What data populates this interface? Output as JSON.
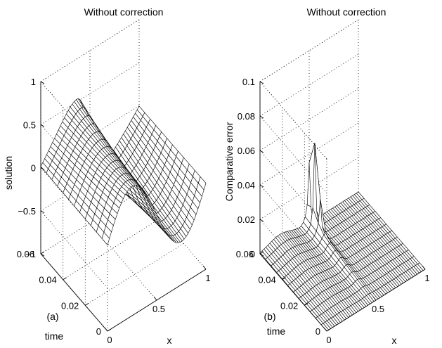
{
  "chart_data": [
    {
      "type": "surface",
      "panel_label": "(a)",
      "title": "Without correction",
      "xlabel": "x",
      "ylabel": "time",
      "zlabel": "solution",
      "xlim": [
        0,
        1
      ],
      "ylim": [
        0,
        0.06
      ],
      "zlim": [
        -1,
        1
      ],
      "xticks": [
        {
          "v": 0,
          "label": "0"
        },
        {
          "v": 0.5,
          "label": "0.5"
        },
        {
          "v": 1,
          "label": "1"
        }
      ],
      "yticks": [
        {
          "v": 0,
          "label": "0"
        },
        {
          "v": 0.02,
          "label": "0.02"
        },
        {
          "v": 0.04,
          "label": "0.04"
        },
        {
          "v": 0.06,
          "label": "0.06"
        }
      ],
      "zticks": [
        {
          "v": -1,
          "label": "−1"
        },
        {
          "v": -0.5,
          "label": "−0.5"
        },
        {
          "v": 0,
          "label": "0"
        },
        {
          "v": 0.5,
          "label": "0.5"
        },
        {
          "v": 1,
          "label": "1"
        }
      ],
      "description_of_surface": "sin(2*pi*x) steepening front near x=0.5, amplitude ~0.5, advected over time"
    },
    {
      "type": "surface",
      "panel_label": "(b)",
      "title": "Without correction",
      "xlabel": "x",
      "ylabel": "time",
      "zlabel": "Comparative error",
      "xlim": [
        0,
        1
      ],
      "ylim": [
        0,
        0.06
      ],
      "zlim": [
        0,
        0.1
      ],
      "xticks": [
        {
          "v": 0,
          "label": "0"
        },
        {
          "v": 0.5,
          "label": "0.5"
        },
        {
          "v": 1,
          "label": "1"
        }
      ],
      "yticks": [
        {
          "v": 0,
          "label": "0"
        },
        {
          "v": 0.02,
          "label": "0.02"
        },
        {
          "v": 0.04,
          "label": "0.04"
        },
        {
          "v": 0.06,
          "label": "0.06"
        }
      ],
      "zticks": [
        {
          "v": 0,
          "label": "0"
        },
        {
          "v": 0.02,
          "label": "0.02"
        },
        {
          "v": 0.04,
          "label": "0.04"
        },
        {
          "v": 0.06,
          "label": "0.06"
        },
        {
          "v": 0.08,
          "label": "0.08"
        },
        {
          "v": 0.1,
          "label": "0.1"
        }
      ],
      "peak_error": 0.047,
      "description_of_surface": "near-zero error except a sharp spike ~0.047 near x=0.5 at late time"
    }
  ]
}
